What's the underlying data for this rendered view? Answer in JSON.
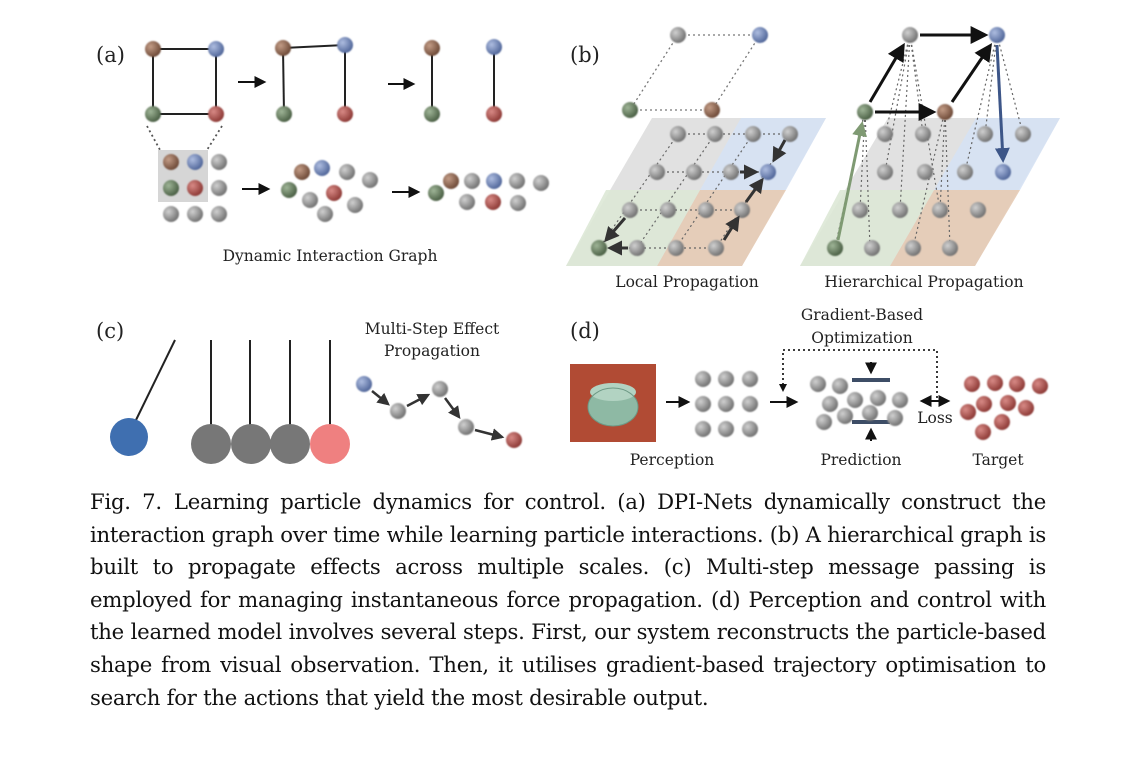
{
  "figure": {
    "panel_a": {
      "label": "(a)",
      "caption": "Dynamic Interaction Graph"
    },
    "panel_b": {
      "label": "(b)",
      "caption_left": "Local Propagation",
      "caption_right": "Hierarchical Propagation"
    },
    "panel_c": {
      "label": "(c)",
      "title_line1": "Multi-Step Effect",
      "title_line2": "Propagation"
    },
    "panel_d": {
      "label": "(d)",
      "title_line1": "Gradient-Based",
      "title_line2": "Optimization",
      "loss": "Loss",
      "perception": "Perception",
      "prediction": "Prediction",
      "target": "Target"
    },
    "colors": {
      "red": "#a84e4a",
      "green": "#5f7a58",
      "blue": "#6f86b8",
      "brown": "#8a6450",
      "gray": "#8d8d8d",
      "pendulum_blue": "#3f6fb0",
      "pendulum_gray": "#777777",
      "pendulum_pink": "#ef8080",
      "plane_blue": "#dce6f5",
      "plane_brown": "#e9cdb7",
      "plane_green": "#e0e9da",
      "plane_gray": "#d9d9d9"
    }
  },
  "caption": {
    "fig_number": "Fig. 7.",
    "text": "Learning particle dynamics for control. (a) DPI-Nets dynamically construct the interaction graph over time while learning particle interactions. (b) A hierarchical graph is built to propagate effects across multiple scales. (c) Multi-step message passing is employed for managing instantaneous force propagation. (d) Perception and control with the learned model involves several steps. First, our system reconstructs the particle-based shape from visual observation. Then, it utilises gradient-based trajectory optimisation to search for the actions that yield the most desirable output."
  }
}
